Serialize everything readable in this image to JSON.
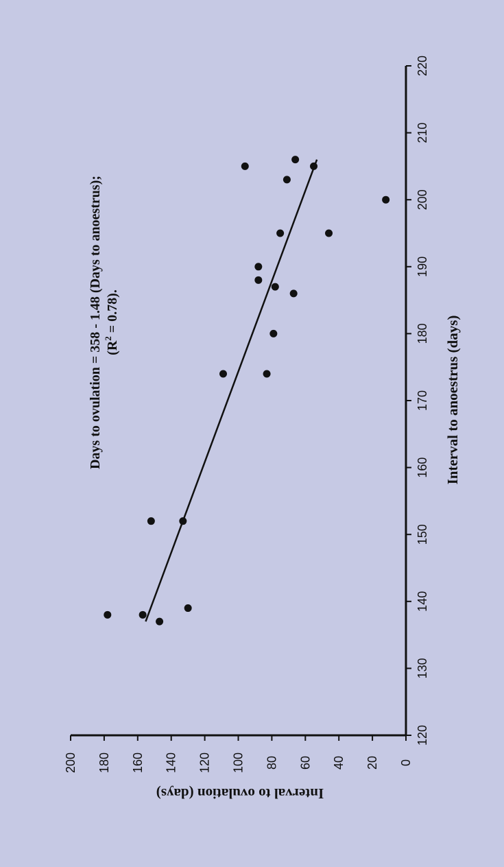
{
  "page_bg": "#c6c9e4",
  "chart_data": {
    "type": "scatter",
    "xlabel": "Interval to anoestrus (days)",
    "ylabel": "Interval to ovulation (days)",
    "xlim": [
      120,
      220
    ],
    "ylim": [
      0,
      200
    ],
    "x_ticks": [
      120,
      130,
      140,
      150,
      160,
      170,
      180,
      190,
      200,
      210,
      220
    ],
    "y_ticks": [
      0,
      20,
      40,
      60,
      80,
      100,
      120,
      140,
      160,
      180,
      200
    ],
    "orientation": "rotated 90 degrees clockwise",
    "grid": false,
    "legend": "none",
    "annotations": [
      "Days to ovulation = 358 - 1.48 (Days to anoestrus);",
      "(R",
      "2",
      " = 0.78)."
    ],
    "trendline": {
      "intercept": 358,
      "slope": -1.48,
      "x_range": [
        137,
        206
      ]
    },
    "points": [
      {
        "x": 138,
        "y": 178
      },
      {
        "x": 138,
        "y": 157
      },
      {
        "x": 137,
        "y": 147
      },
      {
        "x": 139,
        "y": 130
      },
      {
        "x": 152,
        "y": 152
      },
      {
        "x": 152,
        "y": 133
      },
      {
        "x": 174,
        "y": 109
      },
      {
        "x": 174,
        "y": 83
      },
      {
        "x": 180,
        "y": 79
      },
      {
        "x": 186,
        "y": 67
      },
      {
        "x": 187,
        "y": 78
      },
      {
        "x": 188,
        "y": 88
      },
      {
        "x": 190,
        "y": 88
      },
      {
        "x": 195,
        "y": 75
      },
      {
        "x": 195,
        "y": 46
      },
      {
        "x": 200,
        "y": 12
      },
      {
        "x": 203,
        "y": 71
      },
      {
        "x": 205,
        "y": 96
      },
      {
        "x": 205,
        "y": 55
      },
      {
        "x": 206,
        "y": 66
      }
    ],
    "colors": {
      "points": "#111111",
      "line": "#111111",
      "axis": "#111111"
    }
  }
}
